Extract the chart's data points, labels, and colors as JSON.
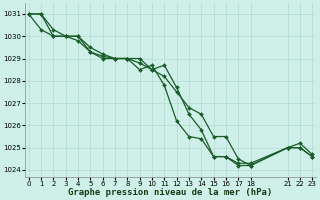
{
  "title": "Graphe pression niveau de la mer (hPa)",
  "background_color": "#cff0e8",
  "grid_color": "#b8ddd6",
  "line_color": "#1a5c2a",
  "series": [
    {
      "x": [
        0,
        1,
        2,
        3,
        4,
        5,
        6,
        7,
        8,
        9,
        10,
        11,
        12,
        13,
        14,
        15,
        16,
        17,
        18,
        21,
        22,
        23
      ],
      "y": [
        1031,
        1031,
        1030.3,
        1030,
        1030,
        1029.3,
        1029,
        1029,
        1029,
        1029,
        1028.5,
        1028.7,
        1027.7,
        1026.5,
        1025.8,
        1024.6,
        1024.6,
        1024.3,
        1024.3,
        1025,
        1025,
        1024.6
      ]
    },
    {
      "x": [
        0,
        1,
        2,
        3,
        4,
        5,
        6,
        7,
        8,
        9,
        10,
        11,
        12,
        13,
        14,
        15,
        16,
        17,
        18,
        21,
        22,
        23
      ],
      "y": [
        1031,
        1031,
        1030,
        1030,
        1030,
        1029.5,
        1029.2,
        1029,
        1029,
        1028.5,
        1028.7,
        1027.8,
        1026.2,
        1025.5,
        1025.4,
        1024.6,
        1024.6,
        1024.2,
        1024.2,
        1025,
        1025.2,
        1024.7
      ]
    },
    {
      "x": [
        0,
        1,
        2,
        3,
        4,
        5,
        6,
        7,
        8,
        9,
        10,
        11,
        12,
        13,
        14,
        15,
        16,
        17,
        18,
        21,
        22,
        23
      ],
      "y": [
        1031,
        1030.3,
        1030,
        1030,
        1029.8,
        1029.3,
        1029.1,
        1029,
        1029,
        1028.8,
        1028.5,
        1028.2,
        1027.5,
        1026.8,
        1026.5,
        1025.5,
        1025.5,
        1024.5,
        1024.2,
        1025,
        1025,
        1024.6
      ]
    }
  ],
  "xlim": [
    -0.3,
    23.3
  ],
  "ylim": [
    1023.7,
    1031.5
  ],
  "xtick_positions": [
    0,
    1,
    2,
    3,
    4,
    5,
    6,
    7,
    8,
    9,
    10,
    11,
    12,
    13,
    14,
    15,
    16,
    17,
    18,
    21,
    22,
    23
  ],
  "xtick_labels": [
    "0",
    "1",
    "2",
    "3",
    "4",
    "5",
    "6",
    "7",
    "8",
    "9",
    "10",
    "11",
    "12",
    "13",
    "14",
    "15",
    "16",
    "17",
    "18",
    "21",
    "22",
    "23"
  ],
  "yticks": [
    1024,
    1025,
    1026,
    1027,
    1028,
    1029,
    1030,
    1031
  ],
  "marker": "D",
  "markersize": 2,
  "linewidth": 0.9,
  "xlabel_fontsize": 6.5,
  "tick_fontsize": 5.0
}
